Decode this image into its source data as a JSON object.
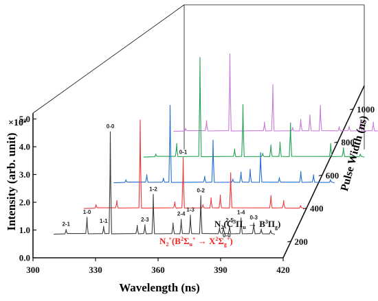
{
  "chart_data": {
    "type": "line",
    "title": "",
    "xlabel": "Wavelength (ns)",
    "ylabel": "Intensity (arb. unit)",
    "zlabel": "Pulse Width (ns)",
    "scale_label": "×10³",
    "xlim": [
      300,
      420
    ],
    "ylim": [
      0,
      5.5
    ],
    "x_ticks": [
      "300",
      "330",
      "360",
      "390",
      "420"
    ],
    "y_ticks": [
      "0.0",
      "1.0",
      "2.0",
      "3.0",
      "4.0",
      "5.0"
    ],
    "z_ticks": [
      "200",
      "400",
      "600",
      "800",
      "1000"
    ],
    "grid": false,
    "series": [
      {
        "pulse_width": 200,
        "color": "#3a3a3a",
        "peaks": [
          [
            315.9,
            0.18
          ],
          [
            325.9,
            0.62
          ],
          [
            333.9,
            0.3
          ],
          [
            337.1,
            3.7
          ],
          [
            350.0,
            0.33
          ],
          [
            353.7,
            0.35
          ],
          [
            357.7,
            1.45
          ],
          [
            367.2,
            0.42
          ],
          [
            371.1,
            0.55
          ],
          [
            375.5,
            0.7
          ],
          [
            380.5,
            1.4
          ],
          [
            389.5,
            0.25
          ],
          [
            391.4,
            0.28
          ],
          [
            394.3,
            0.32
          ],
          [
            399.8,
            0.6
          ],
          [
            405.9,
            0.42
          ],
          [
            409.5,
            0.2
          ],
          [
            414.0,
            0.15
          ]
        ]
      },
      {
        "pulse_width": 400,
        "color": "#ee3636",
        "peaks": [
          [
            315.9,
            0.15
          ],
          [
            325.9,
            0.3
          ],
          [
            337.1,
            3.2
          ],
          [
            353.7,
            0.25
          ],
          [
            357.7,
            1.85
          ],
          [
            367.2,
            0.15
          ],
          [
            371.1,
            0.4
          ],
          [
            375.5,
            0.5
          ],
          [
            380.5,
            1.3
          ],
          [
            399.8,
            0.48
          ],
          [
            405.9,
            0.3
          ],
          [
            414.0,
            0.12
          ]
        ]
      },
      {
        "pulse_width": 600,
        "color": "#1e6fd0",
        "peaks": [
          [
            315.9,
            0.12
          ],
          [
            325.9,
            0.3
          ],
          [
            333.9,
            0.18
          ],
          [
            337.1,
            2.8
          ],
          [
            353.7,
            0.25
          ],
          [
            357.7,
            1.55
          ],
          [
            367.2,
            0.15
          ],
          [
            371.1,
            0.4
          ],
          [
            375.5,
            0.5
          ],
          [
            380.5,
            1.1
          ],
          [
            389.5,
            0.2
          ],
          [
            399.8,
            0.42
          ],
          [
            405.9,
            0.3
          ],
          [
            414.0,
            0.12
          ]
        ]
      },
      {
        "pulse_width": 800,
        "color": "#22a050",
        "peaks": [
          [
            315.9,
            0.12
          ],
          [
            325.9,
            0.5
          ],
          [
            337.1,
            3.6
          ],
          [
            353.7,
            0.3
          ],
          [
            357.7,
            1.9
          ],
          [
            367.2,
            0.15
          ],
          [
            371.1,
            0.45
          ],
          [
            375.5,
            0.55
          ],
          [
            380.5,
            1.25
          ],
          [
            399.8,
            0.5
          ],
          [
            405.9,
            0.35
          ],
          [
            414.0,
            0.12
          ]
        ]
      },
      {
        "pulse_width": 1000,
        "color": "#c77ad8",
        "peaks": [
          [
            315.9,
            0.12
          ],
          [
            325.9,
            0.4
          ],
          [
            337.1,
            2.8
          ],
          [
            353.7,
            0.35
          ],
          [
            357.7,
            1.7
          ],
          [
            367.2,
            0.15
          ],
          [
            371.1,
            0.45
          ],
          [
            375.5,
            0.6
          ],
          [
            380.5,
            0.95
          ],
          [
            389.5,
            0.18
          ],
          [
            394.3,
            0.2
          ],
          [
            399.8,
            0.45
          ],
          [
            405.9,
            0.35
          ],
          [
            414.0,
            0.12
          ]
        ]
      }
    ],
    "annotations": [
      {
        "text": "2-1",
        "x": 315.9,
        "y": 0.18,
        "series": 0
      },
      {
        "text": "1-0",
        "x": 325.9,
        "y": 0.62,
        "series": 0
      },
      {
        "text": "1-1",
        "x": 333.9,
        "y": 0.3,
        "series": 0
      },
      {
        "text": "0-0",
        "x": 337.1,
        "y": 3.7,
        "series": 0
      },
      {
        "text": "2-3",
        "x": 353.7,
        "y": 0.35,
        "series": 0
      },
      {
        "text": "1-2",
        "x": 357.7,
        "y": 1.45,
        "series": 0
      },
      {
        "text": "0-1",
        "x": 357.7,
        "y": 1.85,
        "series": 1
      },
      {
        "text": "2-4",
        "x": 371.1,
        "y": 0.55,
        "series": 0
      },
      {
        "text": "1-3",
        "x": 375.5,
        "y": 0.7,
        "series": 0
      },
      {
        "text": "0-2",
        "x": 380.5,
        "y": 1.4,
        "series": 0
      },
      {
        "text": "2-5",
        "x": 394.3,
        "y": 0.32,
        "series": 0
      },
      {
        "text": "1-4",
        "x": 399.8,
        "y": 0.6,
        "series": 0
      },
      {
        "text": "0-3",
        "x": 405.9,
        "y": 0.42,
        "series": 0
      }
    ],
    "legend_text": {
      "c3pi_main": "N",
      "c3pi_sub": "2",
      "c3pi_open": "(C",
      "c3pi_sup1": "3",
      "c3pi_pi1": "Π",
      "c3pi_u": "u",
      "c3pi_arrow": " → B",
      "c3pi_sup2": "3",
      "c3pi_pi2": "Π",
      "c3pi_g": "g",
      "c3pi_close": ")",
      "b2s_main": "N",
      "b2s_sub": "2",
      "b2s_plus": "+",
      "b2s_open": "(B",
      "b2s_sup1": "2",
      "b2s_sig1": "Σ",
      "b2s_u": "u",
      "b2s_plus1": "+",
      "b2s_arrow": " → X",
      "b2s_sup2": "2",
      "b2s_sig2": "Σ",
      "b2s_g": "g",
      "b2s_plus2": "+",
      "b2s_close": ")",
      "red_band_label": "0-0"
    },
    "colors": {
      "axis": "#111111",
      "red_label": "#ee2222"
    }
  }
}
